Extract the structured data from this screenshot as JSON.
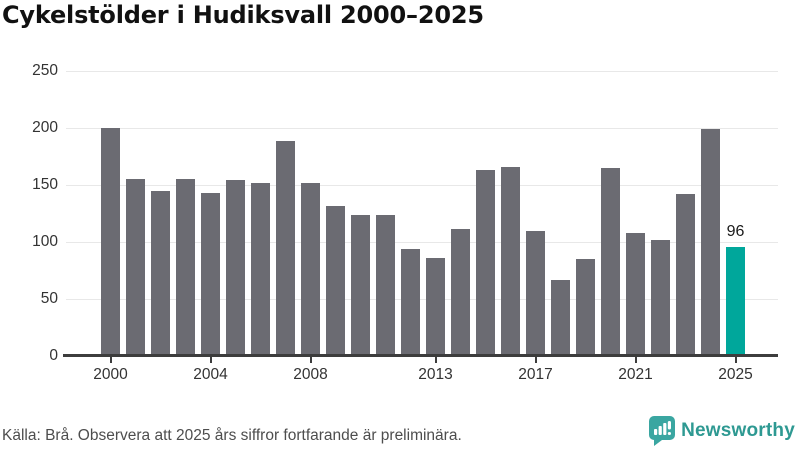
{
  "title": "Cykelstölder i Hudiksvall 2000–2025",
  "footer": {
    "source_note": "Källa: Brå. Observera att 2025 års siffror fortfarande är preliminära.",
    "brand": "Newsworthy",
    "logo_icon": "bar-chart-speech-bubble-icon"
  },
  "colors": {
    "bar": "#6b6b72",
    "highlight": "#00a79b",
    "axis": "#3d3d3d",
    "gridline": "#e8e8e8",
    "tick_label": "#333333",
    "title_text": "#111111",
    "footer_text": "#4d4d4d",
    "brand_teal": "#2e9992",
    "logo_teal": "#3aa6a1"
  },
  "chart_data": {
    "type": "bar",
    "title": "Cykelstölder i Hudiksvall 2000–2025",
    "categories": [
      2000,
      2001,
      2002,
      2003,
      2004,
      2005,
      2006,
      2007,
      2008,
      2009,
      2010,
      2011,
      2012,
      2013,
      2014,
      2015,
      2016,
      2017,
      2018,
      2019,
      2020,
      2021,
      2022,
      2023,
      2024,
      2025
    ],
    "values": [
      200,
      155,
      145,
      155,
      143,
      154,
      152,
      189,
      152,
      132,
      124,
      124,
      94,
      86,
      111,
      163,
      166,
      110,
      67,
      85,
      165,
      108,
      102,
      142,
      199,
      96
    ],
    "highlight_index": 25,
    "highlight_label": "96",
    "x_tick_years": [
      2000,
      2004,
      2008,
      2013,
      2017,
      2021,
      2025
    ],
    "y_ticks": [
      0,
      50,
      100,
      150,
      200,
      250
    ],
    "ylim": [
      0,
      250
    ],
    "xlabel": "",
    "ylabel": "",
    "grid": "horizontal",
    "legend": "none"
  }
}
